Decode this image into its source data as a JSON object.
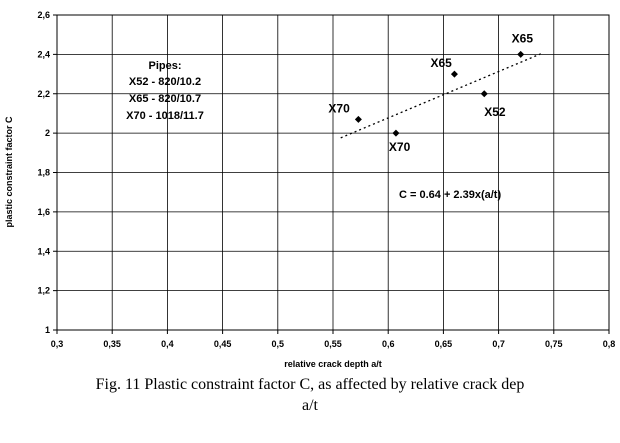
{
  "chart_data": {
    "type": "scatter",
    "xlabel": "relative crack depth a/t",
    "ylabel": "plastic constraint factor C",
    "xlim": [
      0.3,
      0.8
    ],
    "ylim": [
      1,
      2.6
    ],
    "xticks": [
      "0,3",
      "0,35",
      "0,4",
      "0,45",
      "0,5",
      "0,55",
      "0,6",
      "0,65",
      "0,7",
      "0,75",
      "0,8"
    ],
    "yticks": [
      "1",
      "1,2",
      "1,4",
      "1,6",
      "1,8",
      "2",
      "2,2",
      "2,4",
      "2,6"
    ],
    "grid": true,
    "points": [
      {
        "label": "X70",
        "x": 0.573,
        "y": 2.07
      },
      {
        "label": "X70",
        "x": 0.607,
        "y": 2.0
      },
      {
        "label": "X65",
        "x": 0.66,
        "y": 2.3
      },
      {
        "label": "X52",
        "x": 0.687,
        "y": 2.2
      },
      {
        "label": "X65",
        "x": 0.72,
        "y": 2.4
      }
    ],
    "trendline": {
      "style": "dotted",
      "x": [
        0.557,
        0.74
      ],
      "y": [
        1.976,
        2.407
      ]
    },
    "annotations": {
      "pipes": [
        "Pipes:",
        "X52 - 820/10.2",
        "X65 - 820/10.7",
        "X70 - 1018/11.7"
      ],
      "equation": "C = 0.64 + 2.39x(a/t)"
    }
  },
  "caption": {
    "line1": "Fig. 11 Plastic constraint factor C, as affected by relative crack dep",
    "line2": "a/t"
  }
}
